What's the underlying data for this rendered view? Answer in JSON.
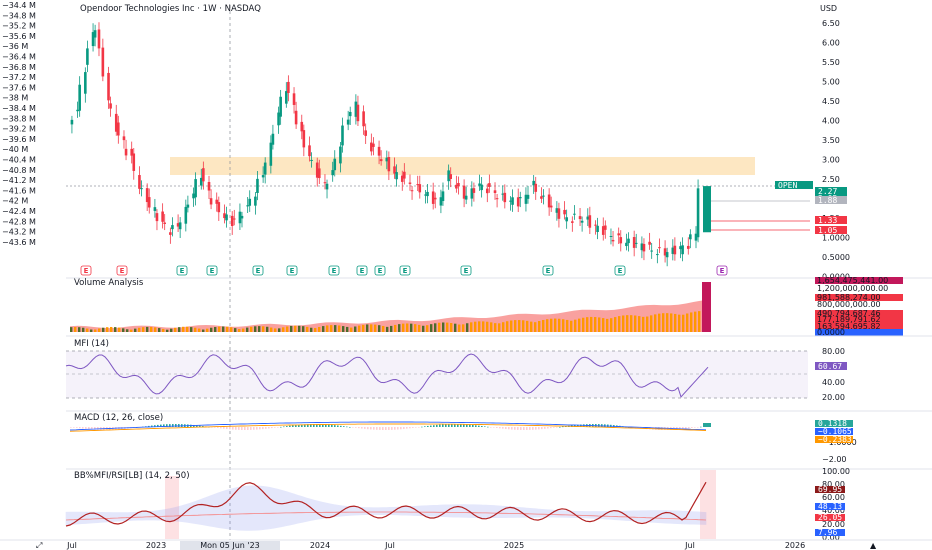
{
  "chart": {
    "title": "Opendoor Technologies Inc · 1W · NASDAQ",
    "currency": "USD",
    "colors": {
      "up": "#089981",
      "down": "#f23645",
      "zone": "#fde7c2",
      "volume_band": "#f7817f"
    }
  },
  "left_axis": {
    "labels": [
      "−34.4 M",
      "−34.8 M",
      "−35.2 M",
      "−35.6 M",
      "−36 M",
      "−36.4 M",
      "−36.8 M",
      "−37.2 M",
      "−37.6 M",
      "−38 M",
      "−38.4 M",
      "−38.8 M",
      "−39.2 M",
      "−39.6 M",
      "−40 M",
      "−40.4 M",
      "−40.8 M",
      "−41.2 M",
      "−41.6 M",
      "−42 M",
      "−42.4 M",
      "−42.8 M",
      "−43.2 M",
      "−43.6 M"
    ]
  },
  "price_axis": {
    "labels": [
      "6.50",
      "6.00",
      "5.50",
      "5.00",
      "4.50",
      "4.00",
      "3.50",
      "3.00",
      "2.50",
      "2.00",
      "1.50",
      "1.0000",
      "0.5000",
      "0.0000"
    ],
    "tags": [
      {
        "text": "OPEN",
        "color": "#089981"
      },
      {
        "text": "2.27",
        "color": "#089981"
      },
      {
        "text": "2:05",
        "color": "#089981"
      },
      {
        "text": "1.88",
        "color": "#b2b5be"
      },
      {
        "text": "1.33",
        "color": "#f23645"
      },
      {
        "text": "1.05",
        "color": "#f23645"
      }
    ]
  },
  "volume_panel": {
    "title": "Volume Analysis",
    "labels": [
      "1,654,475,441.00",
      "1,200,000,000.00",
      "981,588,274.00",
      "800,000,000.00",
      "490,794,687.46",
      "177,189,791.62",
      "163,594,695.82",
      "0.0000"
    ],
    "colors": [
      "#c2185b",
      "#ffffff",
      "#f23645",
      "#ffffff",
      "#f23645",
      "#f23645",
      "#f23645",
      "#2962ff"
    ]
  },
  "mfi_panel": {
    "title": "MFI (14)",
    "labels": [
      "80.00",
      "60.00",
      "40.00",
      "20.00"
    ],
    "value_tag": "60.67",
    "color": "#7e57c2"
  },
  "macd_panel": {
    "title": "MACD (12, 26, close)",
    "labels": [
      "1.0000",
      "−1.0000",
      "−2.00"
    ],
    "tags": [
      {
        "text": "0.1318",
        "color": "#26a69a"
      },
      {
        "text": "−0.1065",
        "color": "#2962ff"
      },
      {
        "text": "−0.2383",
        "color": "#ff9800"
      }
    ]
  },
  "bb_panel": {
    "title": "BB%MFI/RSI[LB] (14, 2, 50)",
    "labels": [
      "100.00",
      "80.00",
      "60.00",
      "40.00",
      "20.00",
      "0.00"
    ],
    "tags": [
      {
        "text": "69.95",
        "color": "#8b1a1a"
      },
      {
        "text": "48.13",
        "color": "#2962ff"
      },
      {
        "text": "26.05",
        "color": "#f23645"
      },
      {
        "text": "7.96",
        "color": "#2962ff"
      }
    ]
  },
  "time_axis": {
    "labels": [
      "Jul",
      "2023",
      "Apr",
      "2024",
      "Jul",
      "2025",
      "Jul",
      "2026"
    ],
    "crosshair_label": "Mon 05 Jun '23"
  },
  "chart_data": {
    "type": "candlestick",
    "earnings_markers": [
      "E",
      "E",
      "E",
      "E",
      "E",
      "E",
      "E",
      "E",
      "E",
      "E",
      "E",
      "E",
      "E",
      "E"
    ],
    "price": [
      {
        "t": 0,
        "v": 3.9
      },
      {
        "t": 2,
        "v": 4.3
      },
      {
        "t": 4,
        "v": 5.4
      },
      {
        "t": 6,
        "v": 6.3
      },
      {
        "t": 7,
        "v": 6.5
      },
      {
        "t": 8,
        "v": 5.8
      },
      {
        "t": 10,
        "v": 4.6
      },
      {
        "t": 12,
        "v": 3.8
      },
      {
        "t": 14,
        "v": 3.4
      },
      {
        "t": 16,
        "v": 3.0
      },
      {
        "t": 18,
        "v": 2.3
      },
      {
        "t": 20,
        "v": 1.9
      },
      {
        "t": 22,
        "v": 1.6
      },
      {
        "t": 24,
        "v": 1.3
      },
      {
        "t": 26,
        "v": 1.1
      },
      {
        "t": 28,
        "v": 1.2
      },
      {
        "t": 30,
        "v": 1.6
      },
      {
        "t": 32,
        "v": 2.1
      },
      {
        "t": 34,
        "v": 2.6
      },
      {
        "t": 36,
        "v": 2.1
      },
      {
        "t": 38,
        "v": 1.7
      },
      {
        "t": 40,
        "v": 1.5
      },
      {
        "t": 42,
        "v": 1.3
      },
      {
        "t": 44,
        "v": 1.5
      },
      {
        "t": 46,
        "v": 1.7
      },
      {
        "t": 48,
        "v": 2.1
      },
      {
        "t": 50,
        "v": 2.6
      },
      {
        "t": 52,
        "v": 3.3
      },
      {
        "t": 54,
        "v": 4.2
      },
      {
        "t": 56,
        "v": 4.9
      },
      {
        "t": 58,
        "v": 4.4
      },
      {
        "t": 60,
        "v": 3.6
      },
      {
        "t": 62,
        "v": 3.1
      },
      {
        "t": 64,
        "v": 2.6
      },
      {
        "t": 66,
        "v": 2.3
      },
      {
        "t": 68,
        "v": 2.6
      },
      {
        "t": 70,
        "v": 3.4
      },
      {
        "t": 72,
        "v": 4.1
      },
      {
        "t": 74,
        "v": 4.4
      },
      {
        "t": 76,
        "v": 3.8
      },
      {
        "t": 78,
        "v": 3.3
      },
      {
        "t": 80,
        "v": 3.1
      },
      {
        "t": 82,
        "v": 2.9
      },
      {
        "t": 84,
        "v": 2.6
      },
      {
        "t": 86,
        "v": 2.5
      },
      {
        "t": 88,
        "v": 2.3
      },
      {
        "t": 90,
        "v": 2.2
      },
      {
        "t": 92,
        "v": 2.1
      },
      {
        "t": 94,
        "v": 1.9
      },
      {
        "t": 96,
        "v": 1.9
      },
      {
        "t": 98,
        "v": 2.6
      },
      {
        "t": 100,
        "v": 2.3
      },
      {
        "t": 102,
        "v": 2.0
      },
      {
        "t": 104,
        "v": 2.1
      },
      {
        "t": 106,
        "v": 2.3
      },
      {
        "t": 108,
        "v": 2.2
      },
      {
        "t": 110,
        "v": 2.1
      },
      {
        "t": 112,
        "v": 1.95
      },
      {
        "t": 114,
        "v": 1.9
      },
      {
        "t": 116,
        "v": 1.85
      },
      {
        "t": 118,
        "v": 2.0
      },
      {
        "t": 120,
        "v": 2.3
      },
      {
        "t": 122,
        "v": 2.0
      },
      {
        "t": 124,
        "v": 1.8
      },
      {
        "t": 126,
        "v": 1.6
      },
      {
        "t": 128,
        "v": 1.45
      },
      {
        "t": 130,
        "v": 1.4
      },
      {
        "t": 132,
        "v": 1.45
      },
      {
        "t": 134,
        "v": 1.35
      },
      {
        "t": 136,
        "v": 1.2
      },
      {
        "t": 138,
        "v": 1.1
      },
      {
        "t": 140,
        "v": 0.95
      },
      {
        "t": 142,
        "v": 0.85
      },
      {
        "t": 144,
        "v": 0.8
      },
      {
        "t": 146,
        "v": 0.75
      },
      {
        "t": 148,
        "v": 0.7
      },
      {
        "t": 150,
        "v": 0.62
      },
      {
        "t": 152,
        "v": 0.55
      },
      {
        "t": 154,
        "v": 0.52
      },
      {
        "t": 156,
        "v": 0.55
      },
      {
        "t": 158,
        "v": 0.62
      },
      {
        "t": 160,
        "v": 0.72
      },
      {
        "t": 162,
        "v": 1.05
      },
      {
        "t": 163,
        "v": 2.27
      }
    ]
  }
}
